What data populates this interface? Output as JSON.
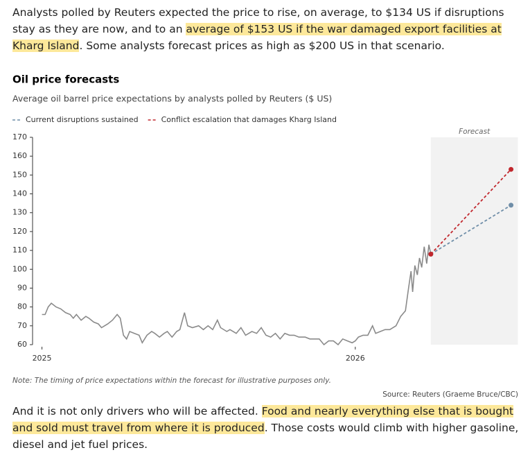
{
  "intro": [
    "Analysts polled by Reuters expected the price to rise, on average, to $134 US if disruptions stay as they are now, and to an ",
    "average of $153 US if the war damaged export facilities at Kharg Island",
    ". Some analysts forecast prices as high as $200 US in that scenario."
  ],
  "outro": [
    "And it is not only drivers who will be affected. ",
    "Food and nearly everything else that is bought and sold must travel from where it is produced",
    ". Those costs would climb with higher gasoline, diesel and jet fuel prices."
  ],
  "chart_data": {
    "type": "line",
    "title": "Oil price forecasts",
    "subtitle": "Average oil barrel price expectations by analysts polled by Reuters ($ US)",
    "forecast_label": "Forecast",
    "forecast_span": [
      2026.241,
      2026.519
    ],
    "note": "Note: The timing of price expectations within the forecast for illustrative purposes only.",
    "source": "Source: Reuters (Graeme Bruce/CBC)",
    "xlim": [
      2024.97,
      2026.52
    ],
    "xticks": [
      2025,
      2026
    ],
    "ylim": [
      60,
      170
    ],
    "yticks": [
      60,
      70,
      80,
      90,
      100,
      110,
      120,
      130,
      140,
      150,
      160,
      170
    ],
    "series": [
      {
        "color": "#8a8a8a",
        "dashed": false,
        "x": [
          2025.0,
          2025.01,
          2025.02,
          2025.03,
          2025.045,
          2025.06,
          2025.075,
          2025.09,
          2025.1,
          2025.11,
          2025.125,
          2025.14,
          2025.15,
          2025.165,
          2025.18,
          2025.19,
          2025.2,
          2025.21,
          2025.225,
          2025.24,
          2025.25,
          2025.26,
          2025.27,
          2025.28,
          2025.295,
          2025.31,
          2025.32,
          2025.335,
          2025.35,
          2025.36,
          2025.375,
          2025.39,
          2025.4,
          2025.415,
          2025.43,
          2025.44,
          2025.455,
          2025.465,
          2025.48,
          2025.5,
          2025.515,
          2025.53,
          2025.545,
          2025.56,
          2025.57,
          2025.59,
          2025.6,
          2025.62,
          2025.635,
          2025.65,
          2025.67,
          2025.685,
          2025.7,
          2025.715,
          2025.73,
          2025.745,
          2025.76,
          2025.775,
          2025.79,
          2025.805,
          2025.82,
          2025.84,
          2025.855,
          2025.87,
          2025.885,
          2025.9,
          2025.915,
          2025.93,
          2025.945,
          2025.96,
          2025.975,
          2025.99,
          2026.0,
          2026.01,
          2026.025,
          2026.04,
          2026.055,
          2026.065,
          2026.08,
          2026.095,
          2026.11,
          2026.13,
          2026.145,
          2026.16,
          2026.17,
          2026.178,
          2026.183,
          2026.19,
          2026.198,
          2026.205,
          2026.212,
          2026.22,
          2026.228,
          2026.235,
          2026.241
        ],
        "values": [
          76,
          76,
          80,
          82,
          80,
          79,
          77,
          76,
          74,
          76,
          73,
          75,
          74,
          72,
          71,
          69,
          70,
          71,
          73,
          76,
          74,
          65,
          63,
          67,
          66,
          65,
          61,
          65,
          67,
          66,
          64,
          66,
          67,
          64,
          67,
          68,
          77,
          70,
          69,
          70,
          68,
          70,
          68,
          73,
          69,
          67,
          68,
          66,
          69,
          65,
          67,
          66,
          69,
          65,
          64,
          66,
          63,
          66,
          65,
          65,
          64,
          64,
          63,
          63,
          63,
          60,
          62,
          62,
          60,
          63,
          62,
          61,
          62,
          64,
          65,
          65,
          70,
          66,
          67,
          68,
          68,
          70,
          75,
          78,
          90,
          99,
          88,
          102,
          97,
          106,
          101,
          112,
          103,
          113,
          108
        ]
      },
      {
        "name": "Current disruptions sustained",
        "color": "#6f8ea8",
        "dashed": true,
        "x": [
          2026.241,
          2026.497
        ],
        "values": [
          108,
          134
        ]
      },
      {
        "name": "Conflict escalation that damages Kharg Island",
        "color": "#c1272d",
        "dashed": true,
        "x": [
          2026.241,
          2026.497
        ],
        "values": [
          108,
          153
        ]
      }
    ]
  }
}
